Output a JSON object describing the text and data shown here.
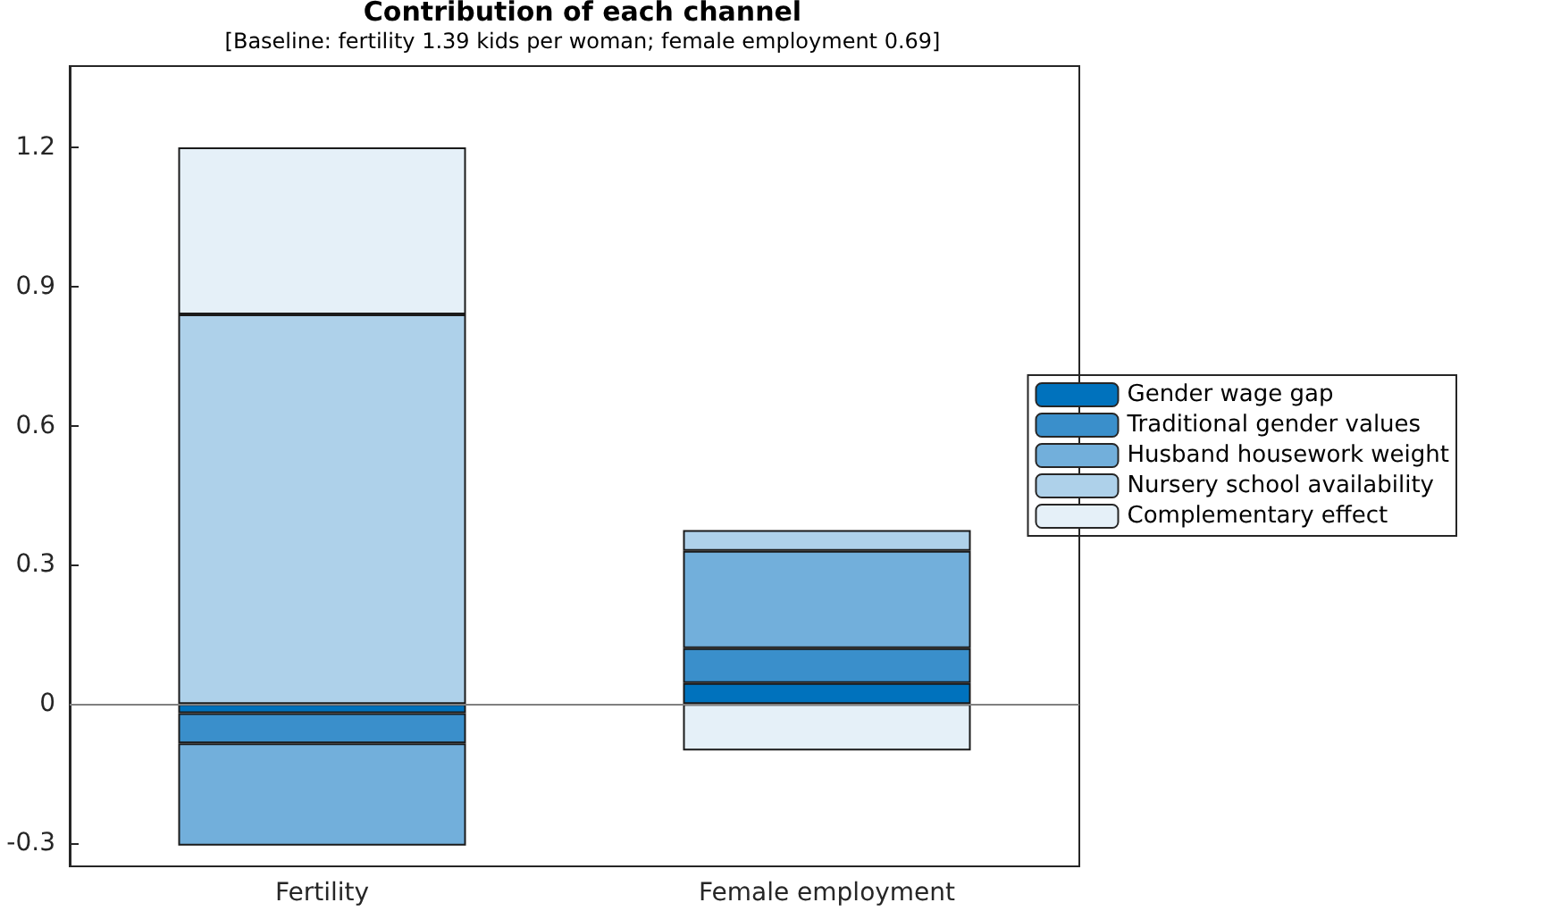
{
  "chart_data": {
    "type": "bar",
    "title": "Contribution of each channel",
    "subtitle": "[Baseline: fertility 1.39 kids per woman; female employment 0.69]",
    "categories": [
      "Fertility",
      "Female employment"
    ],
    "stacked": true,
    "series": [
      {
        "name": "Gender wage gap",
        "color": "#0072bd",
        "values": [
          -0.02,
          0.045
        ]
      },
      {
        "name": "Traditional gender values",
        "color": "#3a8fcb",
        "values": [
          -0.065,
          0.075
        ]
      },
      {
        "name": "Husband housework weight",
        "color": "#72afdb",
        "values": [
          -0.22,
          0.21
        ]
      },
      {
        "name": "Nursery school availability",
        "color": "#aed1ea",
        "values": [
          0.84,
          0.045
        ]
      },
      {
        "name": "Complementary effect",
        "color": "#e5f0f8",
        "values": [
          0.36,
          -0.1
        ]
      }
    ],
    "ylim": [
      -0.35,
      1.375
    ],
    "yticks": [
      -0.3,
      0,
      0.3,
      0.6,
      0.9,
      1.2
    ],
    "grid": false,
    "legend": "right",
    "ref_lines": [
      {
        "axis": "y",
        "value": 0,
        "color": "#808080"
      }
    ]
  }
}
